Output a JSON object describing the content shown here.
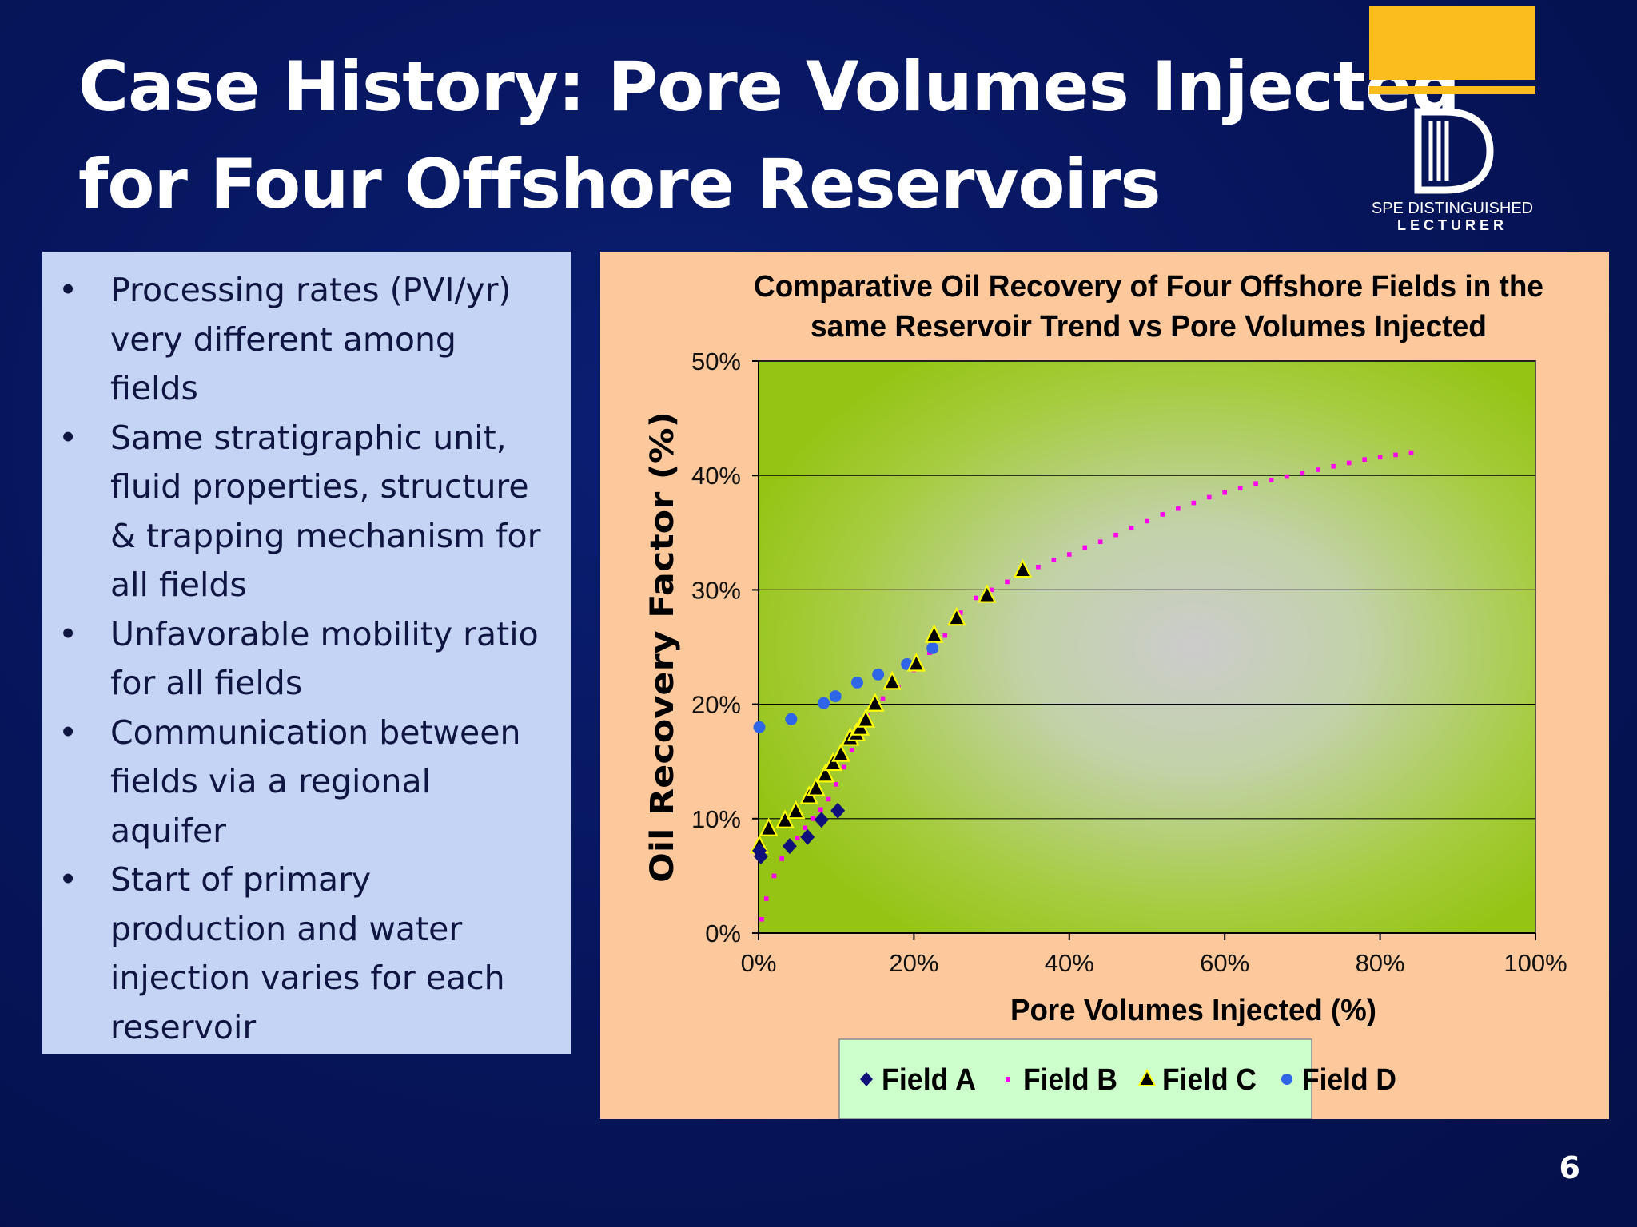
{
  "slide": {
    "title_line1": "Case History:  Pore Volumes Injected",
    "title_line2": "for Four Offshore Reservoirs",
    "page_number": "6"
  },
  "logo": {
    "line1": "SPE DISTINGUISHED",
    "line2": "LECTURER",
    "accent_color": "#fbbd1d"
  },
  "bullets": [
    [
      "Processing rates (PVI/yr)",
      "very different among",
      "fields"
    ],
    [
      "Same stratigraphic unit,",
      "fluid properties, structure",
      "& trapping mechanism for",
      "all fields"
    ],
    [
      "Unfavorable mobility ratio",
      "for all fields"
    ],
    [
      "Communication between",
      "fields via a regional",
      "aquifer"
    ],
    [
      "Start of primary",
      "production and water",
      "injection varies for each",
      "reservoir"
    ]
  ],
  "chart_data": {
    "type": "scatter",
    "title_line1": "Comparative Oil Recovery of Four Offshore Fields in the",
    "title_line2": "same Reservoir Trend vs Pore Volumes Injected",
    "xlabel": "Pore Volumes Injected (%)",
    "ylabel": "Oil Recovery Factor (%)",
    "xlim": [
      0,
      100
    ],
    "ylim": [
      0,
      50
    ],
    "x_ticks": [
      0,
      20,
      40,
      60,
      80,
      100
    ],
    "y_ticks": [
      0,
      10,
      20,
      30,
      40,
      50
    ],
    "x_tick_labels": [
      "0%",
      "20%",
      "40%",
      "60%",
      "80%",
      "100%"
    ],
    "y_tick_labels": [
      "0%",
      "10%",
      "20%",
      "30%",
      "40%",
      "50%"
    ],
    "grid": "horizontal",
    "legend_position": "bottom",
    "series": [
      {
        "name": "Field A",
        "marker": "diamond",
        "color": "#10107a",
        "points": [
          [
            0.1,
            7.2
          ],
          [
            0.3,
            6.7
          ],
          [
            4.0,
            7.6
          ],
          [
            6.3,
            8.4
          ],
          [
            8.1,
            9.9
          ],
          [
            10.2,
            10.7
          ]
        ]
      },
      {
        "name": "Field B",
        "marker": "square",
        "color": "#ff00ee",
        "points": [
          [
            0.4,
            1.2
          ],
          [
            1,
            3
          ],
          [
            2,
            5
          ],
          [
            3,
            6.5
          ],
          [
            4,
            7.5
          ],
          [
            5,
            8.3
          ],
          [
            6,
            9.2
          ],
          [
            7,
            10
          ],
          [
            8,
            10.8
          ],
          [
            9,
            11.7
          ],
          [
            10,
            13
          ],
          [
            11,
            14.5
          ],
          [
            12,
            16
          ],
          [
            13,
            17.5
          ],
          [
            14,
            19
          ],
          [
            16,
            20.5
          ],
          [
            18,
            21.5
          ],
          [
            20,
            23
          ],
          [
            22,
            24.5
          ],
          [
            24,
            26
          ],
          [
            26,
            28
          ],
          [
            28,
            29.3
          ],
          [
            30,
            30
          ],
          [
            32,
            30.7
          ],
          [
            34,
            31.3
          ],
          [
            36,
            32
          ],
          [
            38,
            32.6
          ],
          [
            40,
            33.1
          ],
          [
            42,
            33.7
          ],
          [
            44,
            34.2
          ],
          [
            46,
            34.8
          ],
          [
            48,
            35.4
          ],
          [
            50,
            36
          ],
          [
            52,
            36.6
          ],
          [
            54,
            37.1
          ],
          [
            56,
            37.6
          ],
          [
            58,
            38.1
          ],
          [
            60,
            38.5
          ],
          [
            62,
            38.9
          ],
          [
            64,
            39.3
          ],
          [
            66,
            39.6
          ],
          [
            68,
            39.9
          ],
          [
            70,
            40.2
          ],
          [
            72,
            40.5
          ],
          [
            74,
            40.8
          ],
          [
            76,
            41.1
          ],
          [
            78,
            41.4
          ],
          [
            80,
            41.6
          ],
          [
            82,
            41.8
          ],
          [
            84,
            42.0
          ]
        ]
      },
      {
        "name": "Field C",
        "marker": "triangle",
        "color": "#000000",
        "points": [
          [
            0.1,
            7.6
          ],
          [
            1.3,
            9.1
          ],
          [
            3.4,
            9.8
          ],
          [
            4.8,
            10.6
          ],
          [
            6.5,
            11.9
          ],
          [
            7.4,
            12.6
          ],
          [
            8.6,
            13.8
          ],
          [
            9.6,
            14.8
          ],
          [
            10.6,
            15.6
          ],
          [
            11.8,
            17.0
          ],
          [
            12.6,
            17.4
          ],
          [
            13.1,
            17.9
          ],
          [
            13.8,
            18.6
          ],
          [
            15.0,
            20.0
          ],
          [
            17.2,
            21.9
          ],
          [
            20.3,
            23.5
          ],
          [
            22.6,
            26.0
          ],
          [
            25.5,
            27.5
          ],
          [
            29.4,
            29.5
          ],
          [
            34.0,
            31.7
          ]
        ]
      },
      {
        "name": "Field D",
        "marker": "circle",
        "color": "#2f66e8",
        "points": [
          [
            0.1,
            18.0
          ],
          [
            4.2,
            18.7
          ],
          [
            8.4,
            20.1
          ],
          [
            9.9,
            20.7
          ],
          [
            12.7,
            21.9
          ],
          [
            15.4,
            22.6
          ],
          [
            19.1,
            23.5
          ],
          [
            22.4,
            24.9
          ]
        ]
      }
    ]
  }
}
